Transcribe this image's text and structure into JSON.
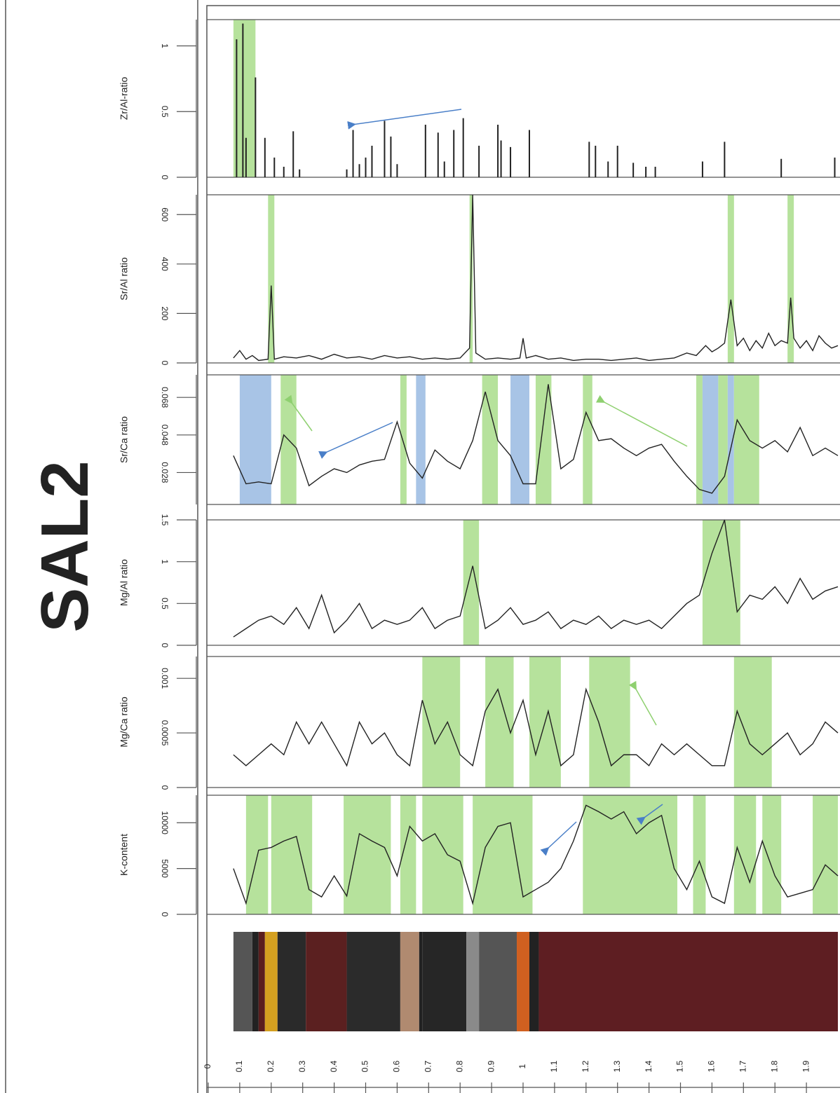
{
  "figure_title": "SAL2",
  "x_axis": {
    "xlim": [
      0,
      2
    ],
    "xticks": [
      0,
      0.1,
      0.2,
      0.3,
      0.4,
      0.5,
      0.6,
      0.7,
      0.8,
      0.9,
      1,
      1.1,
      1.2,
      1.3,
      1.4,
      1.5,
      1.6,
      1.7,
      1.8,
      1.9
    ]
  },
  "chart_data": [
    {
      "type": "spike",
      "y_label": "Zr/Al-ratio",
      "ylim": [
        0,
        1.2
      ],
      "yticks": [
        0,
        0.5,
        1
      ],
      "color": "#222222",
      "x": [
        0.09,
        0.11,
        0.12,
        0.15,
        0.18,
        0.21,
        0.24,
        0.27,
        0.29,
        0.44,
        0.46,
        0.48,
        0.5,
        0.52,
        0.56,
        0.58,
        0.6,
        0.69,
        0.73,
        0.75,
        0.78,
        0.81,
        0.86,
        0.92,
        0.93,
        0.96,
        1.02,
        1.21,
        1.23,
        1.27,
        1.3,
        1.35,
        1.39,
        1.42,
        1.57,
        1.64,
        1.82,
        1.99
      ],
      "values": [
        1.05,
        1.17,
        0.3,
        0.76,
        0.3,
        0.15,
        0.08,
        0.35,
        0.06,
        0.06,
        0.36,
        0.1,
        0.15,
        0.24,
        0.43,
        0.31,
        0.1,
        0.4,
        0.34,
        0.12,
        0.36,
        0.45,
        0.24,
        0.4,
        0.28,
        0.23,
        0.36,
        0.27,
        0.24,
        0.12,
        0.24,
        0.11,
        0.08,
        0.08,
        0.12,
        0.27,
        0.14,
        0.15
      ],
      "bands": [
        {
          "from": 0.08,
          "to": 0.15,
          "color": "#b6e29c"
        }
      ]
    },
    {
      "type": "line",
      "y_label": "Sr/Al ratio",
      "ylim": [
        0,
        680
      ],
      "yticks": [
        0,
        200,
        400,
        600
      ],
      "color": "#222222",
      "x": [
        0.08,
        0.1,
        0.12,
        0.14,
        0.16,
        0.19,
        0.2,
        0.21,
        0.24,
        0.28,
        0.32,
        0.36,
        0.4,
        0.44,
        0.48,
        0.52,
        0.56,
        0.6,
        0.64,
        0.68,
        0.72,
        0.76,
        0.8,
        0.83,
        0.84,
        0.85,
        0.88,
        0.92,
        0.96,
        0.99,
        1.0,
        1.01,
        1.04,
        1.08,
        1.12,
        1.16,
        1.2,
        1.24,
        1.28,
        1.32,
        1.36,
        1.4,
        1.44,
        1.48,
        1.52,
        1.55,
        1.58,
        1.6,
        1.62,
        1.64,
        1.66,
        1.68,
        1.7,
        1.72,
        1.74,
        1.76,
        1.78,
        1.8,
        1.82,
        1.84,
        1.85,
        1.86,
        1.88,
        1.9,
        1.92,
        1.94,
        1.96,
        1.98,
        2.0
      ],
      "values": [
        20,
        50,
        15,
        30,
        10,
        15,
        313,
        15,
        25,
        20,
        30,
        15,
        35,
        20,
        25,
        15,
        30,
        20,
        25,
        15,
        20,
        15,
        20,
        60,
        680,
        40,
        15,
        20,
        15,
        20,
        100,
        20,
        30,
        15,
        20,
        10,
        15,
        15,
        10,
        15,
        20,
        10,
        15,
        20,
        40,
        30,
        70,
        45,
        60,
        80,
        256,
        70,
        100,
        50,
        90,
        60,
        120,
        70,
        90,
        80,
        264,
        100,
        60,
        90,
        50,
        110,
        80,
        60,
        70
      ],
      "bands": [
        {
          "from": 0.19,
          "to": 0.21,
          "color": "#b6e29c"
        },
        {
          "from": 0.83,
          "to": 0.84,
          "color": "#b6e29c"
        },
        {
          "from": 1.65,
          "to": 1.67,
          "color": "#b6e29c"
        },
        {
          "from": 1.84,
          "to": 1.86,
          "color": "#b6e29c"
        }
      ]
    },
    {
      "type": "line",
      "y_label": "Sr/Ca ratio",
      "ylim": [
        0.011,
        0.08
      ],
      "yticks": [
        0.028,
        0.048,
        0.068
      ],
      "color": "#222222",
      "x": [
        0.08,
        0.12,
        0.16,
        0.2,
        0.24,
        0.28,
        0.32,
        0.36,
        0.4,
        0.44,
        0.48,
        0.52,
        0.56,
        0.6,
        0.64,
        0.68,
        0.72,
        0.76,
        0.8,
        0.84,
        0.88,
        0.92,
        0.96,
        1,
        1.04,
        1.08,
        1.12,
        1.16,
        1.2,
        1.24,
        1.28,
        1.32,
        1.36,
        1.4,
        1.44,
        1.48,
        1.52,
        1.56,
        1.6,
        1.64,
        1.68,
        1.72,
        1.76,
        1.8,
        1.84,
        1.88,
        1.92,
        1.96,
        2
      ],
      "values": [
        0.037,
        0.022,
        0.023,
        0.022,
        0.048,
        0.041,
        0.021,
        0.026,
        0.03,
        0.028,
        0.032,
        0.034,
        0.035,
        0.055,
        0.033,
        0.025,
        0.04,
        0.034,
        0.03,
        0.045,
        0.071,
        0.045,
        0.037,
        0.022,
        0.022,
        0.075,
        0.03,
        0.035,
        0.06,
        0.045,
        0.046,
        0.041,
        0.037,
        0.041,
        0.043,
        0.034,
        0.026,
        0.019,
        0.017,
        0.026,
        0.056,
        0.045,
        0.041,
        0.045,
        0.039,
        0.052,
        0.037,
        0.041,
        0.037
      ],
      "bands": [
        {
          "from": 0.1,
          "to": 0.2,
          "color": "#a8c4e6"
        },
        {
          "from": 0.23,
          "to": 0.28,
          "color": "#b6e29c"
        },
        {
          "from": 0.61,
          "to": 0.63,
          "color": "#b6e29c"
        },
        {
          "from": 0.66,
          "to": 0.69,
          "color": "#a8c4e6"
        },
        {
          "from": 0.87,
          "to": 0.92,
          "color": "#b6e29c"
        },
        {
          "from": 0.96,
          "to": 1.02,
          "color": "#a8c4e6"
        },
        {
          "from": 1.04,
          "to": 1.09,
          "color": "#b6e29c"
        },
        {
          "from": 1.19,
          "to": 1.22,
          "color": "#b6e29c"
        },
        {
          "from": 1.55,
          "to": 1.57,
          "color": "#b6e29c"
        },
        {
          "from": 1.57,
          "to": 1.62,
          "color": "#a8c4e6"
        },
        {
          "from": 1.62,
          "to": 1.65,
          "color": "#b6e29c"
        },
        {
          "from": 1.65,
          "to": 1.67,
          "color": "#a8c4e6"
        },
        {
          "from": 1.67,
          "to": 1.75,
          "color": "#b6e29c"
        }
      ]
    },
    {
      "type": "line",
      "y_label": "Mg/Al ratio",
      "ylim": [
        0,
        1.5
      ],
      "yticks": [
        0,
        0.5,
        1,
        1.5
      ],
      "color": "#222222",
      "x": [
        0.08,
        0.12,
        0.16,
        0.2,
        0.24,
        0.28,
        0.32,
        0.36,
        0.4,
        0.44,
        0.48,
        0.52,
        0.56,
        0.6,
        0.64,
        0.68,
        0.72,
        0.76,
        0.8,
        0.84,
        0.88,
        0.92,
        0.96,
        1,
        1.04,
        1.08,
        1.12,
        1.16,
        1.2,
        1.24,
        1.28,
        1.32,
        1.36,
        1.4,
        1.44,
        1.48,
        1.52,
        1.56,
        1.6,
        1.64,
        1.68,
        1.72,
        1.76,
        1.8,
        1.84,
        1.88,
        1.92,
        1.96,
        2
      ],
      "values": [
        0.1,
        0.2,
        0.3,
        0.35,
        0.25,
        0.45,
        0.2,
        0.6,
        0.15,
        0.3,
        0.5,
        0.2,
        0.3,
        0.25,
        0.3,
        0.45,
        0.2,
        0.3,
        0.35,
        0.95,
        0.2,
        0.3,
        0.45,
        0.25,
        0.3,
        0.4,
        0.2,
        0.3,
        0.25,
        0.35,
        0.2,
        0.3,
        0.25,
        0.3,
        0.2,
        0.35,
        0.5,
        0.6,
        1.1,
        1.5,
        0.4,
        0.6,
        0.55,
        0.7,
        0.5,
        0.8,
        0.55,
        0.65,
        0.7
      ],
      "bands": [
        {
          "from": 0.81,
          "to": 0.86,
          "color": "#b6e29c"
        },
        {
          "from": 1.57,
          "to": 1.69,
          "color": "#b6e29c"
        }
      ]
    },
    {
      "type": "line",
      "y_label": "Mg/Ca ratio",
      "ylim": [
        0,
        0.0012
      ],
      "yticks": [
        0,
        0.0005,
        0.001
      ],
      "color": "#222222",
      "x": [
        0.08,
        0.12,
        0.16,
        0.2,
        0.24,
        0.28,
        0.32,
        0.36,
        0.4,
        0.44,
        0.48,
        0.52,
        0.56,
        0.6,
        0.64,
        0.68,
        0.72,
        0.76,
        0.8,
        0.84,
        0.88,
        0.92,
        0.96,
        1,
        1.04,
        1.08,
        1.12,
        1.16,
        1.2,
        1.24,
        1.28,
        1.32,
        1.36,
        1.4,
        1.44,
        1.48,
        1.52,
        1.56,
        1.6,
        1.64,
        1.68,
        1.72,
        1.76,
        1.8,
        1.84,
        1.88,
        1.92,
        1.96,
        2
      ],
      "values": [
        0.0003,
        0.0002,
        0.0003,
        0.0004,
        0.0003,
        0.0006,
        0.0004,
        0.0006,
        0.0004,
        0.0002,
        0.0006,
        0.0004,
        0.0005,
        0.0003,
        0.0002,
        0.0008,
        0.0004,
        0.0006,
        0.0003,
        0.0002,
        0.0007,
        0.0009,
        0.0005,
        0.0008,
        0.0003,
        0.0007,
        0.0002,
        0.0003,
        0.0009,
        0.0006,
        0.0002,
        0.0003,
        0.0003,
        0.0002,
        0.0004,
        0.0003,
        0.0004,
        0.0003,
        0.0002,
        0.0002,
        0.0007,
        0.0004,
        0.0003,
        0.0004,
        0.0005,
        0.0003,
        0.0004,
        0.0006,
        0.0005
      ],
      "bands": [
        {
          "from": 0.68,
          "to": 0.8,
          "color": "#b6e29c"
        },
        {
          "from": 0.88,
          "to": 0.97,
          "color": "#b6e29c"
        },
        {
          "from": 1.02,
          "to": 1.12,
          "color": "#b6e29c"
        },
        {
          "from": 1.21,
          "to": 1.34,
          "color": "#b6e29c"
        },
        {
          "from": 1.67,
          "to": 1.79,
          "color": "#b6e29c"
        }
      ]
    },
    {
      "type": "line",
      "y_label": "K-content",
      "ylim": [
        0,
        13000
      ],
      "yticks": [
        0,
        5000,
        10000
      ],
      "color": "#222222",
      "x": [
        0.08,
        0.12,
        0.16,
        0.2,
        0.24,
        0.28,
        0.32,
        0.36,
        0.4,
        0.44,
        0.48,
        0.52,
        0.56,
        0.6,
        0.64,
        0.68,
        0.72,
        0.76,
        0.8,
        0.84,
        0.88,
        0.92,
        0.96,
        1,
        1.04,
        1.08,
        1.12,
        1.16,
        1.2,
        1.24,
        1.28,
        1.32,
        1.36,
        1.4,
        1.44,
        1.48,
        1.52,
        1.56,
        1.6,
        1.64,
        1.68,
        1.72,
        1.76,
        1.8,
        1.84,
        1.88,
        1.92,
        1.96,
        2
      ],
      "values": [
        5000,
        1200,
        7000,
        7300,
        8000,
        8500,
        2700,
        1900,
        4200,
        2000,
        8800,
        8000,
        7300,
        4200,
        9600,
        8000,
        8800,
        6500,
        5800,
        1200,
        7300,
        9600,
        10000,
        1900,
        2700,
        3500,
        5000,
        8000,
        11900,
        11200,
        10400,
        11200,
        8800,
        10000,
        10800,
        5000,
        2700,
        5800,
        1900,
        1200,
        7300,
        3500,
        8000,
        4200,
        1900,
        2300,
        2700,
        5400,
        4200
      ],
      "bands": [
        {
          "from": 0.12,
          "to": 0.19,
          "color": "#b6e29c"
        },
        {
          "from": 0.2,
          "to": 0.33,
          "color": "#b6e29c"
        },
        {
          "from": 0.43,
          "to": 0.58,
          "color": "#b6e29c"
        },
        {
          "from": 0.61,
          "to": 0.66,
          "color": "#b6e29c"
        },
        {
          "from": 0.68,
          "to": 0.81,
          "color": "#b6e29c"
        },
        {
          "from": 0.84,
          "to": 1.03,
          "color": "#b6e29c"
        },
        {
          "from": 1.19,
          "to": 1.49,
          "color": "#b6e29c"
        },
        {
          "from": 1.54,
          "to": 1.58,
          "color": "#b6e29c"
        },
        {
          "from": 1.67,
          "to": 1.74,
          "color": "#b6e29c"
        },
        {
          "from": 1.76,
          "to": 1.82,
          "color": "#b6e29c"
        },
        {
          "from": 1.92,
          "to": 2.0,
          "color": "#b6e29c"
        }
      ]
    },
    {
      "type": "strip",
      "segments": [
        {
          "from": 0.08,
          "to": 0.14,
          "color": "#555555"
        },
        {
          "from": 0.14,
          "to": 0.16,
          "color": "#222222"
        },
        {
          "from": 0.16,
          "to": 0.18,
          "color": "#5a1e1e"
        },
        {
          "from": 0.18,
          "to": 0.22,
          "color": "#d4a020"
        },
        {
          "from": 0.22,
          "to": 0.31,
          "color": "#2a2a2a"
        },
        {
          "from": 0.31,
          "to": 0.44,
          "color": "#5b2020"
        },
        {
          "from": 0.44,
          "to": 0.61,
          "color": "#2b2b2b"
        },
        {
          "from": 0.61,
          "to": 0.67,
          "color": "#b08a70"
        },
        {
          "from": 0.67,
          "to": 0.68,
          "color": "#222222"
        },
        {
          "from": 0.68,
          "to": 0.82,
          "color": "#262626"
        },
        {
          "from": 0.82,
          "to": 0.86,
          "color": "#8a8a8a"
        },
        {
          "from": 0.86,
          "to": 0.98,
          "color": "#555555"
        },
        {
          "from": 0.98,
          "to": 1.02,
          "color": "#d06020"
        },
        {
          "from": 1.02,
          "to": 1.05,
          "color": "#222222"
        },
        {
          "from": 1.05,
          "to": 2.0,
          "color": "#5e1e22"
        }
      ]
    }
  ]
}
